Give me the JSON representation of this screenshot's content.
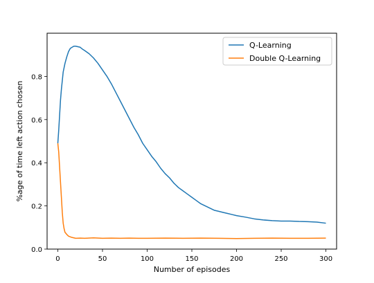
{
  "chart_data": {
    "type": "line",
    "title": "",
    "xlabel": "Number of episodes",
    "ylabel": "%age of time left action chosen",
    "xlim": [
      -12,
      312
    ],
    "ylim": [
      0.0,
      1.0
    ],
    "xticks": [
      0,
      50,
      100,
      150,
      200,
      250,
      300
    ],
    "xtick_labels": [
      "0",
      "50",
      "100",
      "150",
      "200",
      "250",
      "300"
    ],
    "yticks": [
      0.0,
      0.2,
      0.4,
      0.6,
      0.8
    ],
    "ytick_labels": [
      "0.0",
      "0.2",
      "0.4",
      "0.6",
      "0.8"
    ],
    "grid": false,
    "legend_position": "upper-right",
    "series": [
      {
        "name": "Q-Learning",
        "color": "#1f77b4",
        "x": [
          0,
          1,
          2,
          3,
          4,
          5,
          6,
          8,
          10,
          12,
          14,
          16,
          18,
          20,
          22,
          25,
          28,
          30,
          35,
          40,
          45,
          50,
          55,
          60,
          65,
          70,
          75,
          80,
          85,
          90,
          95,
          100,
          105,
          110,
          115,
          120,
          125,
          130,
          135,
          140,
          145,
          150,
          155,
          160,
          165,
          170,
          175,
          180,
          185,
          190,
          195,
          200,
          210,
          220,
          230,
          240,
          250,
          260,
          270,
          280,
          290,
          300
        ],
        "y": [
          0.49,
          0.55,
          0.62,
          0.69,
          0.74,
          0.78,
          0.82,
          0.86,
          0.89,
          0.915,
          0.93,
          0.935,
          0.94,
          0.94,
          0.938,
          0.935,
          0.925,
          0.92,
          0.905,
          0.885,
          0.86,
          0.83,
          0.8,
          0.765,
          0.725,
          0.685,
          0.645,
          0.605,
          0.565,
          0.53,
          0.49,
          0.46,
          0.43,
          0.405,
          0.375,
          0.35,
          0.33,
          0.305,
          0.285,
          0.27,
          0.255,
          0.24,
          0.225,
          0.21,
          0.2,
          0.19,
          0.18,
          0.175,
          0.17,
          0.165,
          0.16,
          0.155,
          0.148,
          0.14,
          0.135,
          0.132,
          0.13,
          0.13,
          0.128,
          0.127,
          0.125,
          0.12
        ]
      },
      {
        "name": "Double Q-Learning",
        "color": "#ff7f0e",
        "x": [
          0,
          1,
          2,
          3,
          4,
          5,
          6,
          7,
          8,
          10,
          12,
          15,
          20,
          25,
          30,
          40,
          50,
          60,
          70,
          80,
          90,
          100,
          120,
          140,
          160,
          180,
          200,
          220,
          240,
          260,
          280,
          300
        ],
        "y": [
          0.49,
          0.45,
          0.38,
          0.31,
          0.24,
          0.17,
          0.12,
          0.095,
          0.078,
          0.068,
          0.06,
          0.055,
          0.05,
          0.051,
          0.05,
          0.052,
          0.05,
          0.051,
          0.05,
          0.051,
          0.05,
          0.05,
          0.051,
          0.05,
          0.051,
          0.05,
          0.049,
          0.05,
          0.051,
          0.05,
          0.05,
          0.051
        ]
      }
    ]
  }
}
